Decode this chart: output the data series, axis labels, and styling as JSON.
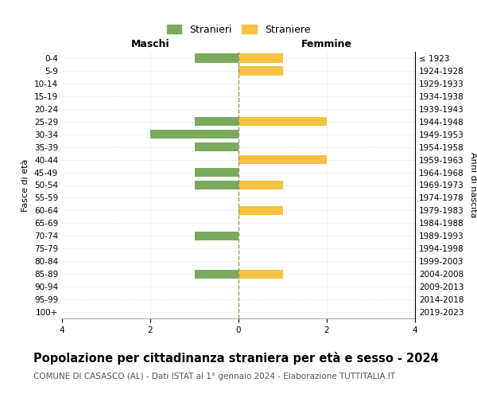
{
  "age_groups": [
    "0-4",
    "5-9",
    "10-14",
    "15-19",
    "20-24",
    "25-29",
    "30-34",
    "35-39",
    "40-44",
    "45-49",
    "50-54",
    "55-59",
    "60-64",
    "65-69",
    "70-74",
    "75-79",
    "80-84",
    "85-89",
    "90-94",
    "95-99",
    "100+"
  ],
  "birth_years": [
    "2019-2023",
    "2014-2018",
    "2009-2013",
    "2004-2008",
    "1999-2003",
    "1994-1998",
    "1989-1993",
    "1984-1988",
    "1979-1983",
    "1974-1978",
    "1969-1973",
    "1964-1968",
    "1959-1963",
    "1954-1958",
    "1949-1953",
    "1944-1948",
    "1939-1943",
    "1934-1938",
    "1929-1933",
    "1924-1928",
    "≤ 1923"
  ],
  "males": [
    -1,
    0,
    0,
    0,
    0,
    -1,
    -2,
    -1,
    0,
    -1,
    -1,
    0,
    0,
    0,
    -1,
    0,
    0,
    -1,
    0,
    0,
    0
  ],
  "females": [
    1,
    1,
    0,
    0,
    0,
    2,
    0,
    0,
    2,
    0,
    1,
    0,
    1,
    0,
    0,
    0,
    0,
    1,
    0,
    0,
    0
  ],
  "male_color": "#7aaa5e",
  "female_color": "#f5c242",
  "bar_height": 0.7,
  "xlim": [
    -4,
    4
  ],
  "xticks": [
    -4,
    -2,
    0,
    2,
    4
  ],
  "xticklabels": [
    "4",
    "2",
    "0",
    "2",
    "4"
  ],
  "title": "Popolazione per cittadinanza straniera per età e sesso - 2024",
  "subtitle": "COMUNE DI CASASCO (AL) - Dati ISTAT al 1° gennaio 2024 - Elaborazione TUTTITALIA.IT",
  "legend_male": "Stranieri",
  "legend_female": "Straniere",
  "ylabel_left": "Fasce di età",
  "ylabel_right": "Anni di nascita",
  "header_male": "Maschi",
  "header_female": "Femmine",
  "grid_color": "#cccccc",
  "background_color": "#ffffff",
  "title_fontsize": 10.5,
  "subtitle_fontsize": 7.5,
  "axis_fontsize": 7.5,
  "legend_fontsize": 9
}
